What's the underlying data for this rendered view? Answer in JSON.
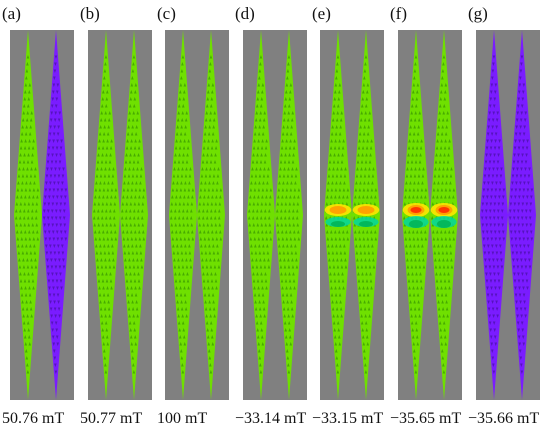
{
  "colors": {
    "background": "#808080",
    "green": "#6fe000",
    "purple": "#7a1cff",
    "arrow_green": "#3a9a00",
    "arrow_purple": "#4a10a8",
    "hot_red": "#ff2a00",
    "hot_orange": "#ff9a00",
    "hot_yellow": "#ffe600",
    "cyan_green": "#00d6a0"
  },
  "panels": [
    {
      "tag": "(a)",
      "field": "50.76 mT",
      "left_color": "green",
      "right_color": "purple",
      "hot": 0
    },
    {
      "tag": "(b)",
      "field": "50.77 mT",
      "left_color": "green",
      "right_color": "green",
      "hot": 0
    },
    {
      "tag": "(c)",
      "field": "100 mT",
      "left_color": "green",
      "right_color": "green",
      "hot": 0
    },
    {
      "tag": "(d)",
      "field": "−33.14 mT",
      "left_color": "green",
      "right_color": "green",
      "hot": 0
    },
    {
      "tag": "(e)",
      "field": "−33.15 mT",
      "left_color": "green",
      "right_color": "green",
      "hot": 1
    },
    {
      "tag": "(f)",
      "field": "−35.65 mT",
      "left_color": "green",
      "right_color": "green",
      "hot": 2
    },
    {
      "tag": "(g)",
      "field": "−35.66 mT",
      "left_color": "purple",
      "right_color": "purple",
      "hot": 0
    }
  ]
}
